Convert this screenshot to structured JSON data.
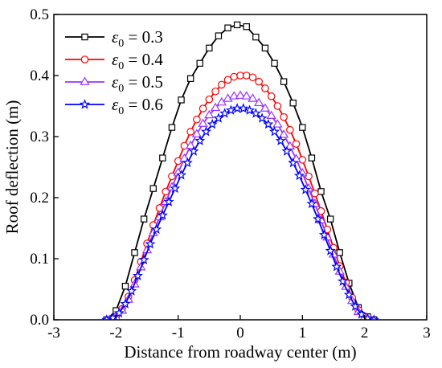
{
  "chart_data": {
    "type": "line",
    "xlabel": "Distance from roadway center (m)",
    "ylabel": "Roof deflection (m)",
    "xlim": [
      -3,
      3
    ],
    "ylim": [
      0,
      0.5
    ],
    "xticks": [
      -3,
      -2,
      -1,
      0,
      1,
      2,
      3
    ],
    "yticks": [
      0.0,
      0.1,
      0.2,
      0.3,
      0.4,
      0.5
    ],
    "xtick_labels": [
      "-3",
      "-2",
      "-1",
      "0",
      "1",
      "2",
      "3"
    ],
    "ytick_labels": [
      "0.0",
      "0.1",
      "0.2",
      "0.3",
      "0.4",
      "0.5"
    ],
    "legend_position": "top-left",
    "series": [
      {
        "name": "ε0 = 0.3",
        "label_symbol": "ε",
        "label_sub": "0",
        "label_rest": " = 0.3",
        "color": "#000000",
        "marker": "square",
        "x": [
          -2.15,
          -2.0,
          -1.85,
          -1.7,
          -1.55,
          -1.4,
          -1.25,
          -1.1,
          -0.95,
          -0.8,
          -0.65,
          -0.5,
          -0.35,
          -0.2,
          -0.05,
          0.1,
          0.25,
          0.4,
          0.55,
          0.7,
          0.85,
          1.0,
          1.15,
          1.3,
          1.45,
          1.6,
          1.75,
          1.9,
          2.05,
          2.15
        ],
        "y": [
          0.0,
          0.015,
          0.055,
          0.11,
          0.165,
          0.215,
          0.265,
          0.315,
          0.36,
          0.395,
          0.42,
          0.445,
          0.465,
          0.478,
          0.483,
          0.48,
          0.463,
          0.445,
          0.42,
          0.39,
          0.355,
          0.315,
          0.265,
          0.21,
          0.165,
          0.11,
          0.06,
          0.02,
          0.005,
          0.0
        ]
      },
      {
        "name": "ε0 = 0.4",
        "label_symbol": "ε",
        "label_sub": "0",
        "label_rest": " = 0.4",
        "color": "#ff0000",
        "marker": "circle",
        "x": [
          -2.1,
          -2.0,
          -1.9,
          -1.8,
          -1.7,
          -1.6,
          -1.5,
          -1.4,
          -1.3,
          -1.2,
          -1.1,
          -1.0,
          -0.9,
          -0.8,
          -0.7,
          -0.6,
          -0.5,
          -0.4,
          -0.3,
          -0.2,
          -0.1,
          0.0,
          0.1,
          0.2,
          0.3,
          0.4,
          0.5,
          0.6,
          0.7,
          0.8,
          0.9,
          1.0,
          1.1,
          1.2,
          1.3,
          1.4,
          1.5,
          1.6,
          1.7,
          1.8,
          1.9,
          2.0,
          2.1
        ],
        "y": [
          0.0,
          0.005,
          0.018,
          0.038,
          0.065,
          0.095,
          0.125,
          0.155,
          0.183,
          0.21,
          0.235,
          0.26,
          0.285,
          0.308,
          0.328,
          0.346,
          0.361,
          0.374,
          0.385,
          0.393,
          0.398,
          0.4,
          0.4,
          0.397,
          0.39,
          0.379,
          0.366,
          0.35,
          0.332,
          0.311,
          0.288,
          0.262,
          0.235,
          0.207,
          0.178,
          0.148,
          0.118,
          0.088,
          0.061,
          0.036,
          0.016,
          0.005,
          0.0
        ]
      },
      {
        "name": "ε0 = 0.5",
        "label_symbol": "ε",
        "label_sub": "0",
        "label_rest": " = 0.5",
        "color": "#9933ff",
        "marker": "triangle",
        "x": [
          -2.1,
          -2.0,
          -1.9,
          -1.8,
          -1.7,
          -1.6,
          -1.5,
          -1.4,
          -1.3,
          -1.2,
          -1.1,
          -1.0,
          -0.9,
          -0.8,
          -0.7,
          -0.6,
          -0.5,
          -0.4,
          -0.3,
          -0.2,
          -0.1,
          0.0,
          0.1,
          0.2,
          0.3,
          0.4,
          0.5,
          0.6,
          0.7,
          0.8,
          0.9,
          1.0,
          1.1,
          1.2,
          1.3,
          1.4,
          1.5,
          1.6,
          1.7,
          1.8,
          1.9,
          2.0,
          2.1
        ],
        "y": [
          0.0,
          0.004,
          0.015,
          0.033,
          0.058,
          0.086,
          0.114,
          0.142,
          0.168,
          0.193,
          0.217,
          0.241,
          0.264,
          0.285,
          0.304,
          0.321,
          0.335,
          0.347,
          0.356,
          0.362,
          0.366,
          0.367,
          0.366,
          0.362,
          0.355,
          0.346,
          0.334,
          0.32,
          0.303,
          0.284,
          0.263,
          0.24,
          0.215,
          0.19,
          0.163,
          0.135,
          0.107,
          0.079,
          0.054,
          0.031,
          0.013,
          0.004,
          0.0
        ]
      },
      {
        "name": "ε0 = 0.6",
        "label_symbol": "ε",
        "label_sub": "0",
        "label_rest": " = 0.6",
        "color": "#0000ff",
        "marker": "star",
        "x": [
          -2.15,
          -2.05,
          -1.95,
          -1.85,
          -1.75,
          -1.65,
          -1.55,
          -1.45,
          -1.35,
          -1.25,
          -1.15,
          -1.05,
          -0.95,
          -0.85,
          -0.75,
          -0.65,
          -0.55,
          -0.45,
          -0.35,
          -0.25,
          -0.15,
          -0.05,
          0.05,
          0.15,
          0.25,
          0.35,
          0.45,
          0.55,
          0.65,
          0.75,
          0.85,
          0.95,
          1.05,
          1.15,
          1.25,
          1.35,
          1.45,
          1.55,
          1.65,
          1.75,
          1.85,
          1.95,
          2.05,
          2.15
        ],
        "y": [
          0.0,
          0.003,
          0.011,
          0.026,
          0.047,
          0.072,
          0.098,
          0.124,
          0.148,
          0.171,
          0.193,
          0.215,
          0.237,
          0.257,
          0.276,
          0.293,
          0.308,
          0.32,
          0.33,
          0.338,
          0.343,
          0.346,
          0.346,
          0.343,
          0.338,
          0.33,
          0.32,
          0.308,
          0.293,
          0.276,
          0.257,
          0.236,
          0.213,
          0.19,
          0.165,
          0.139,
          0.113,
          0.087,
          0.063,
          0.041,
          0.022,
          0.009,
          0.002,
          0.0
        ]
      }
    ]
  }
}
